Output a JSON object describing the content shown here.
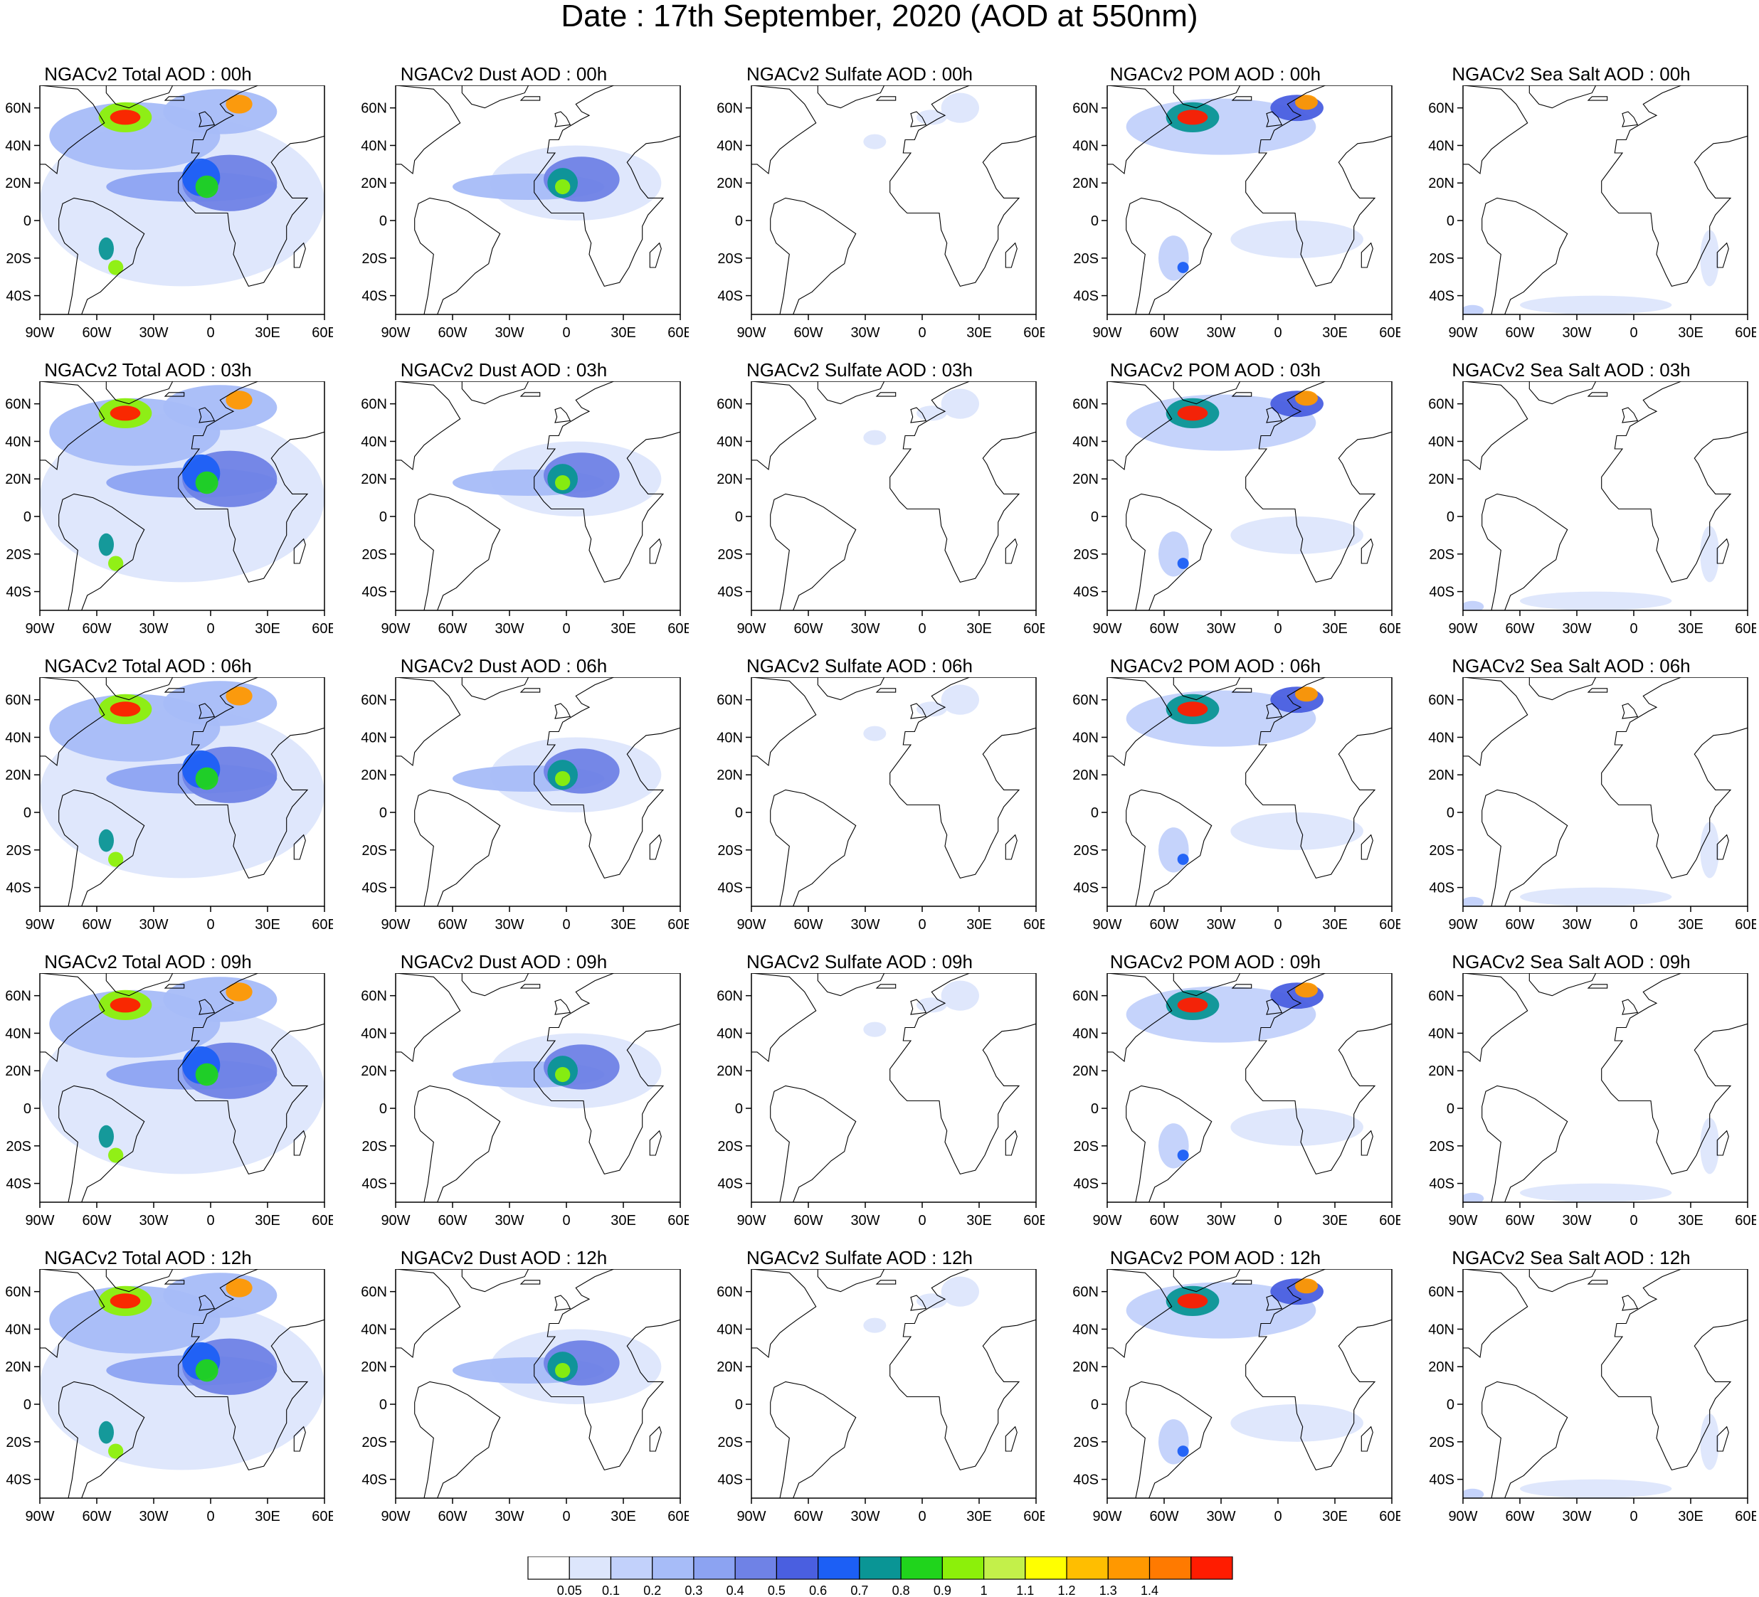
{
  "title": "Date : 17th September, 2020 (AOD at 550nm)",
  "map": {
    "lon_ticks": [
      "90W",
      "60W",
      "30W",
      "0",
      "30E",
      "60E"
    ],
    "lat_ticks": [
      "60N",
      "40N",
      "20N",
      "0",
      "20S",
      "40S"
    ]
  },
  "rows": [
    {
      "hour": "00h",
      "titles": [
        "NGACv2 Total AOD : 00h",
        "NGACv2 Dust AOD : 00h",
        "NGACv2 Sulfate AOD : 00h",
        "NGACv2 POM AOD : 00h",
        "NGACv2 Sea Salt AOD : 00h"
      ]
    },
    {
      "hour": "03h",
      "titles": [
        "NGACv2 Total AOD : 03h",
        "NGACv2 Dust AOD : 03h",
        "NGACv2 Sulfate AOD : 03h",
        "NGACv2 POM AOD : 03h",
        "NGACv2 Sea Salt AOD : 03h"
      ]
    },
    {
      "hour": "06h",
      "titles": [
        "NGACv2 Total AOD : 06h",
        "NGACv2 Dust AOD : 06h",
        "NGACv2 Sulfate AOD : 06h",
        "NGACv2 POM AOD : 06h",
        "NGACv2 Sea Salt AOD : 06h"
      ]
    },
    {
      "hour": "09h",
      "titles": [
        "NGACv2 Total AOD : 09h",
        "NGACv2 Dust AOD : 09h",
        "NGACv2 Sulfate AOD : 09h",
        "NGACv2 POM AOD : 09h",
        "NGACv2 Sea Salt  AOD : 09h"
      ]
    },
    {
      "hour": "12h",
      "titles": [
        "NGACv2 Total AOD  : 12h",
        "NGACv2 Dust AOD : 12h",
        "NGACv2 Sulfate AOD : 12h",
        "NGACv2 POM  AOD : 12h",
        "NGACv2 Sea Salt  AOD : 12h"
      ]
    }
  ],
  "species": [
    "total",
    "dust",
    "sulfate",
    "pom",
    "seasalt"
  ],
  "colorbar": {
    "labels": [
      "0.05",
      "0.1",
      "0.2",
      "0.3",
      "0.4",
      "0.5",
      "0.6",
      "0.7",
      "0.8",
      "0.9",
      "1",
      "1.1",
      "1.2",
      "1.3",
      "1.4"
    ],
    "colors": [
      "#ffffff",
      "#dde6fc",
      "#c2d1fb",
      "#a7bcf8",
      "#8ca3f2",
      "#6f82e6",
      "#4a5fe0",
      "#1c5ff5",
      "#0a9595",
      "#20d41c",
      "#8cf00a",
      "#c3f04a",
      "#ffff00",
      "#ffbe00",
      "#ff9800",
      "#ff7a00",
      "#ff1c00"
    ]
  }
}
